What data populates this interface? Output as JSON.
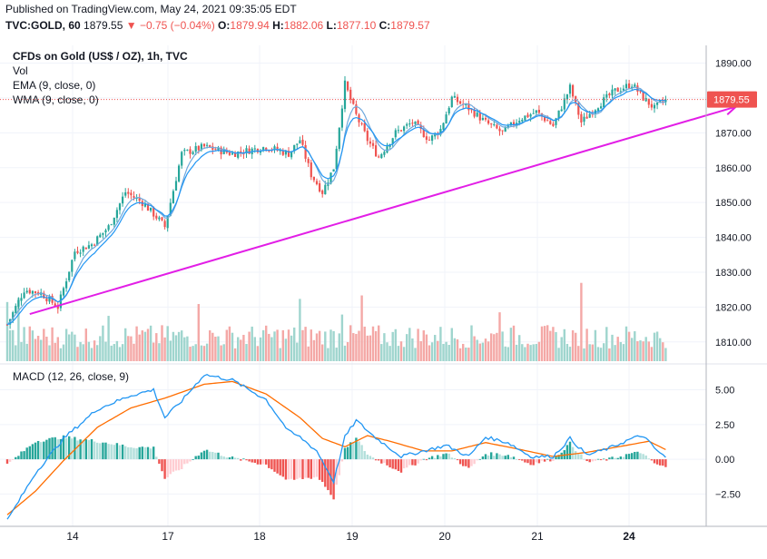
{
  "header": {
    "publish_line": "Published on TradingView.com, May 24, 2021 09:35:05 EDT",
    "symbol": "TVC:GOLD, 60",
    "last": "1879.55",
    "change": "▼ −0.75 (−0.04%)",
    "o_label": "O:",
    "o_value": "1879.94",
    "h_label": "H:",
    "h_value": "1882.06",
    "l_label": "L:",
    "l_value": "1877.10",
    "c_label": "C:",
    "c_value": "1879.57"
  },
  "legend": {
    "title": "CFDs on Gold (US$ / OZ), 1h, TVC",
    "vol": "Vol",
    "ema": "EMA (9, close, 0)",
    "wma": "WMA (9, close, 0)",
    "macd": "MACD (12, 26, close, 9)"
  },
  "colors": {
    "up": "#26a69a",
    "down": "#ef5350",
    "vol_up": "#9fd5ce",
    "vol_down": "#f4a8a6",
    "ema": "#2196f3",
    "wma": "#6fa8dc",
    "trendline": "#e21ee6",
    "macd_line": "#2196f3",
    "signal_line": "#ff6d00",
    "hist_up_strong": "#26a69a",
    "hist_up_weak": "#b2dfdb",
    "hist_down_strong": "#ef5350",
    "hist_down_weak": "#ffcdd2",
    "price_badge": "#ef5350"
  },
  "chart_data": [
    {
      "type": "candlestick",
      "title": "CFDs on Gold (US$ / OZ), 1h, TVC",
      "x_ticks": [
        "14",
        "17",
        "18",
        "19",
        "20",
        "21",
        "24"
      ],
      "ylim": [
        1805,
        1893
      ],
      "y_ticks": [
        "1890.00",
        "1880.00",
        "1870.00",
        "1860.00",
        "1850.00",
        "1840.00",
        "1830.00",
        "1820.00",
        "1810.00"
      ],
      "price_badge": "1879.55",
      "anchors": [
        [
          0,
          1815
        ],
        [
          6,
          1825
        ],
        [
          12,
          1824
        ],
        [
          18,
          1820
        ],
        [
          24,
          1836
        ],
        [
          30,
          1838
        ],
        [
          36,
          1843
        ],
        [
          42,
          1853
        ],
        [
          48,
          1850
        ],
        [
          54,
          1845
        ],
        [
          56,
          1843
        ],
        [
          62,
          1864
        ],
        [
          70,
          1866
        ],
        [
          80,
          1864
        ],
        [
          92,
          1866
        ],
        [
          100,
          1864
        ],
        [
          104,
          1868
        ],
        [
          108,
          1858
        ],
        [
          112,
          1853
        ],
        [
          116,
          1860
        ],
        [
          120,
          1884
        ],
        [
          124,
          1875
        ],
        [
          128,
          1868
        ],
        [
          132,
          1863
        ],
        [
          138,
          1870
        ],
        [
          144,
          1873
        ],
        [
          150,
          1868
        ],
        [
          154,
          1871
        ],
        [
          158,
          1880
        ],
        [
          164,
          1877
        ],
        [
          170,
          1873
        ],
        [
          176,
          1870
        ],
        [
          182,
          1874
        ],
        [
          188,
          1876
        ],
        [
          194,
          1872
        ],
        [
          200,
          1883
        ],
        [
          204,
          1873
        ],
        [
          210,
          1878
        ],
        [
          216,
          1882
        ],
        [
          222,
          1884
        ],
        [
          226,
          1880
        ],
        [
          230,
          1877
        ],
        [
          234,
          1879.55
        ]
      ],
      "indicators": [
        "EMA (9, close, 0)",
        "WMA (9, close, 0)"
      ],
      "trendline": {
        "start": {
          "bar": 8,
          "price": 1818
        },
        "end": {
          "bar": 259,
          "price": 1877.5
        }
      },
      "volume_series": "Vol"
    },
    {
      "type": "line",
      "title": "MACD (12, 26, close, 9)",
      "ylim": [
        -4.5,
        6.8
      ],
      "y_ticks": [
        "5.00",
        "2.50",
        "0.00",
        "−2.50"
      ],
      "series": [
        {
          "name": "MACD",
          "anchors": [
            [
              0,
              -4.4
            ],
            [
              10,
              -1.0
            ],
            [
              20,
              1.5
            ],
            [
              32,
              3.6
            ],
            [
              44,
              4.6
            ],
            [
              52,
              5.0
            ],
            [
              56,
              3.0
            ],
            [
              62,
              4.2
            ],
            [
              70,
              6.1
            ],
            [
              80,
              5.7
            ],
            [
              92,
              4.3
            ],
            [
              100,
              2.0
            ],
            [
              104,
              1.6
            ],
            [
              110,
              0.6
            ],
            [
              116,
              -1.6
            ],
            [
              120,
              1.6
            ],
            [
              124,
              2.8
            ],
            [
              130,
              1.7
            ],
            [
              140,
              0.2
            ],
            [
              148,
              0.6
            ],
            [
              156,
              1.0
            ],
            [
              164,
              0.2
            ],
            [
              170,
              1.6
            ],
            [
              178,
              1.2
            ],
            [
              186,
              0.2
            ],
            [
              194,
              0.2
            ],
            [
              200,
              1.5
            ],
            [
              206,
              0.3
            ],
            [
              214,
              0.8
            ],
            [
              222,
              1.5
            ],
            [
              226,
              1.7
            ],
            [
              230,
              0.8
            ],
            [
              234,
              0.1
            ]
          ]
        },
        {
          "name": "Signal",
          "anchors": [
            [
              0,
              -4.0
            ],
            [
              10,
              -2.3
            ],
            [
              20,
              -0.1
            ],
            [
              32,
              2.3
            ],
            [
              44,
              3.7
            ],
            [
              56,
              4.4
            ],
            [
              70,
              5.4
            ],
            [
              80,
              5.6
            ],
            [
              92,
              4.7
            ],
            [
              104,
              3.0
            ],
            [
              112,
              1.5
            ],
            [
              120,
              0.9
            ],
            [
              128,
              1.7
            ],
            [
              136,
              1.3
            ],
            [
              148,
              0.6
            ],
            [
              158,
              0.6
            ],
            [
              170,
              1.2
            ],
            [
              180,
              0.8
            ],
            [
              194,
              0.2
            ],
            [
              206,
              0.5
            ],
            [
              220,
              1.0
            ],
            [
              228,
              1.3
            ],
            [
              234,
              0.7
            ]
          ]
        }
      ]
    }
  ]
}
